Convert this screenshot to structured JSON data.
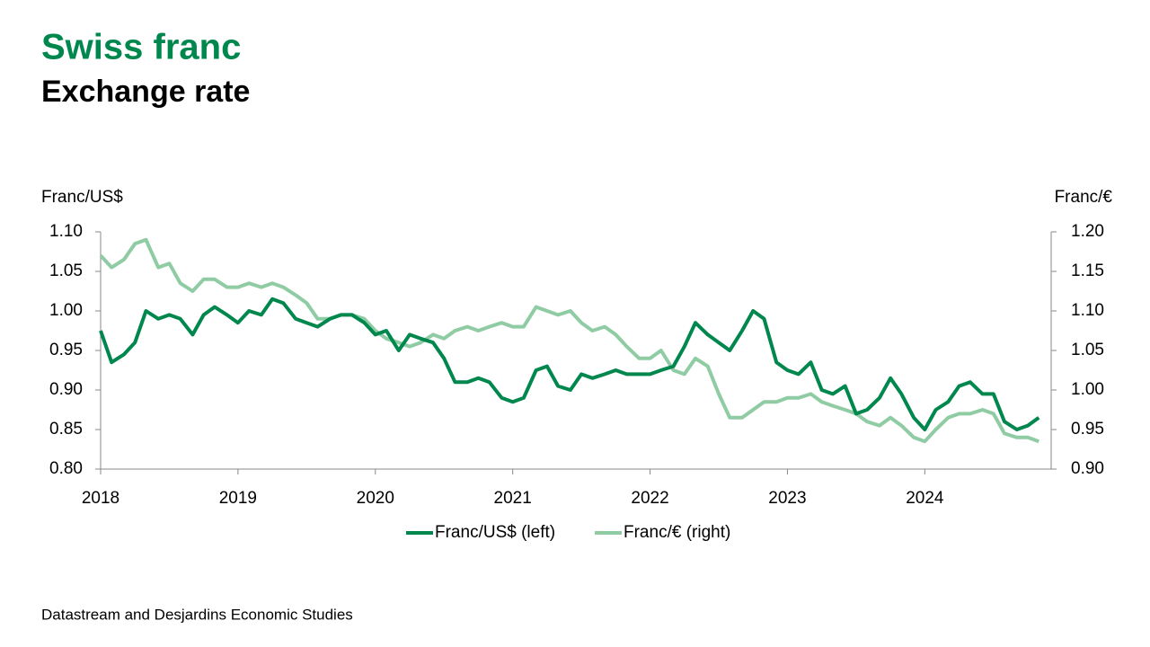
{
  "chart_data": {
    "type": "line",
    "title": "Swiss franc",
    "subtitle": "Exchange rate",
    "y_label": "Franc/US$",
    "y2_label": "Franc/€",
    "source": "Datastream and Desjardins Economic Studies",
    "legend": "bottom",
    "x": [
      2018,
      2018.08,
      2018.17,
      2018.25,
      2018.33,
      2018.42,
      2018.5,
      2018.58,
      2018.67,
      2018.75,
      2018.83,
      2018.92,
      2019,
      2019.08,
      2019.17,
      2019.25,
      2019.33,
      2019.42,
      2019.5,
      2019.58,
      2019.67,
      2019.75,
      2019.83,
      2019.92,
      2020,
      2020.08,
      2020.17,
      2020.25,
      2020.33,
      2020.42,
      2020.5,
      2020.58,
      2020.67,
      2020.75,
      2020.83,
      2020.92,
      2021,
      2021.08,
      2021.17,
      2021.25,
      2021.33,
      2021.42,
      2021.5,
      2021.58,
      2021.67,
      2021.75,
      2021.83,
      2021.92,
      2022,
      2022.08,
      2022.17,
      2022.25,
      2022.33,
      2022.42,
      2022.5,
      2022.58,
      2022.67,
      2022.75,
      2022.83,
      2022.92,
      2023,
      2023.08,
      2023.17,
      2023.25,
      2023.33,
      2023.42,
      2023.5,
      2023.58,
      2023.67,
      2023.75,
      2023.83,
      2023.92,
      2024,
      2024.08,
      2024.17,
      2024.25,
      2024.33,
      2024.42,
      2024.5,
      2024.58,
      2024.67,
      2024.75,
      2024.83
    ],
    "xlim": [
      2018,
      2024.92
    ],
    "xticks": [
      2018,
      2019,
      2020,
      2021,
      2022,
      2023,
      2024
    ],
    "ylim": [
      0.8,
      1.1
    ],
    "yticks": [
      {
        "value": 0.8,
        "label": "0.80"
      },
      0.85,
      {
        "value": 0.9,
        "label": "0.90"
      },
      0.95,
      {
        "value": 1.0,
        "label": "1.00"
      },
      1.05,
      {
        "value": 1.1,
        "label": "1.10"
      }
    ],
    "y2lim": [
      0.9,
      1.2
    ],
    "y2ticks": [
      {
        "value": 0.9,
        "label": "0.90"
      },
      0.95,
      {
        "value": 1.0,
        "label": "1.00"
      },
      1.05,
      {
        "value": 1.1,
        "label": "1.10"
      },
      1.15,
      {
        "value": 1.2,
        "label": "1.20"
      }
    ],
    "series": [
      {
        "name": "Franc/US$ (left)",
        "color": "#00874e",
        "axis": "y",
        "values": [
          0.975,
          0.935,
          0.945,
          0.96,
          1.0,
          0.99,
          0.995,
          0.99,
          0.97,
          0.995,
          1.005,
          0.995,
          0.985,
          1.0,
          0.995,
          1.015,
          1.01,
          0.99,
          0.985,
          0.98,
          0.99,
          0.995,
          0.995,
          0.985,
          0.97,
          0.975,
          0.95,
          0.97,
          0.965,
          0.96,
          0.94,
          0.91,
          0.91,
          0.915,
          0.91,
          0.89,
          0.885,
          0.89,
          0.925,
          0.93,
          0.905,
          0.9,
          0.92,
          0.915,
          0.92,
          0.925,
          0.92,
          0.92,
          0.92,
          0.925,
          0.93,
          0.955,
          0.985,
          0.97,
          0.96,
          0.95,
          0.975,
          1.0,
          0.99,
          0.935,
          0.925,
          0.92,
          0.935,
          0.9,
          0.895,
          0.905,
          0.87,
          0.875,
          0.89,
          0.915,
          0.895,
          0.865,
          0.85,
          0.875,
          0.885,
          0.905,
          0.91,
          0.895,
          0.895,
          0.86,
          0.85,
          0.855,
          0.865
        ]
      },
      {
        "name": "Franc/€ (right)",
        "color": "#8fcca4",
        "axis": "y2",
        "values": [
          1.17,
          1.155,
          1.165,
          1.185,
          1.19,
          1.155,
          1.16,
          1.135,
          1.125,
          1.14,
          1.14,
          1.13,
          1.13,
          1.135,
          1.13,
          1.135,
          1.13,
          1.12,
          1.11,
          1.09,
          1.09,
          1.095,
          1.095,
          1.09,
          1.075,
          1.065,
          1.06,
          1.055,
          1.06,
          1.07,
          1.065,
          1.075,
          1.08,
          1.075,
          1.08,
          1.085,
          1.08,
          1.08,
          1.105,
          1.1,
          1.095,
          1.1,
          1.085,
          1.075,
          1.08,
          1.07,
          1.055,
          1.04,
          1.04,
          1.05,
          1.025,
          1.02,
          1.04,
          1.03,
          0.995,
          0.965,
          0.965,
          0.975,
          0.985,
          0.985,
          0.99,
          0.99,
          0.995,
          0.985,
          0.98,
          0.975,
          0.97,
          0.96,
          0.955,
          0.965,
          0.955,
          0.94,
          0.935,
          0.95,
          0.965,
          0.97,
          0.97,
          0.975,
          0.97,
          0.945,
          0.94,
          0.94,
          0.935
        ]
      }
    ]
  }
}
